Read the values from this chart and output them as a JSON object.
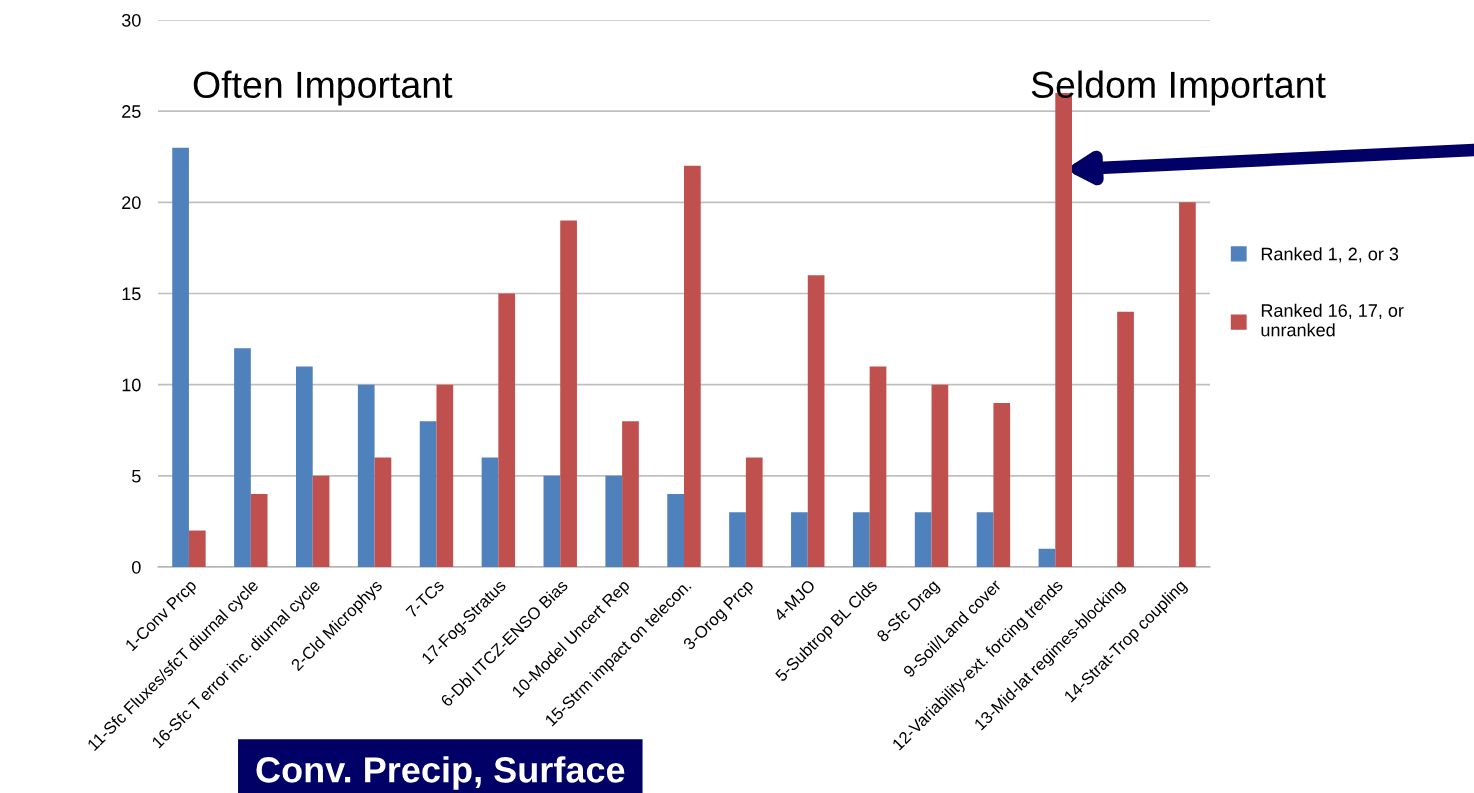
{
  "chart_data": {
    "type": "bar",
    "categories": [
      "1-Conv Prcp",
      "11-Sfc Fluxes/sfcT diurnal cycle",
      "16-Sfc T error inc. diurnal cycle",
      "2-Cld Microphys",
      "7-TCs",
      "17-Fog-Stratus",
      "6-Dbl ITCZ-ENSO Bias",
      "10-Model Uncert Rep",
      "15-Strm impact on telecon.",
      "3-Orog Prcp",
      "4-MJO",
      "5-Subtrop BL Clds",
      "8-Sfc Drag",
      "9-Soil/Land cover",
      "12-Variability-ext. forcing trends",
      "13-Mid-lat regimes-blocking",
      "14-Strat-Trop coupling"
    ],
    "series": [
      {
        "name": "Ranked 1, 2, or 3",
        "color": "#4f81bd",
        "values": [
          23,
          12,
          11,
          10,
          8,
          6,
          5,
          5,
          4,
          3,
          3,
          3,
          3,
          3,
          1,
          null,
          null
        ]
      },
      {
        "name": "Ranked 16, 17, or unranked",
        "color": "#c0504d",
        "values": [
          2,
          4,
          5,
          6,
          10,
          15,
          19,
          8,
          22,
          6,
          16,
          11,
          10,
          9,
          26,
          14,
          20
        ]
      }
    ],
    "ylim": [
      0,
      30
    ],
    "yticks": [
      0,
      5,
      10,
      15,
      20,
      25,
      30
    ],
    "grid": "y",
    "legend": "right",
    "annotations": [
      "Often Important",
      "Seldom Important",
      "Conv. Precip, Surface"
    ]
  }
}
